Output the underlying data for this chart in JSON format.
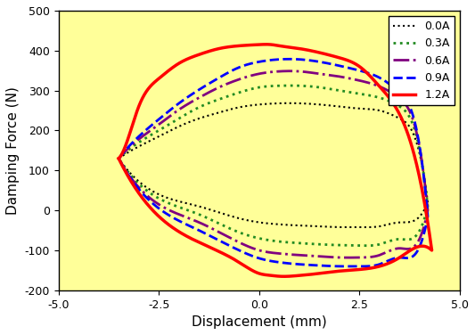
{
  "title": "",
  "xlabel": "Displacement (mm)",
  "ylabel": "Damping Force (N)",
  "xlim": [
    -5.0,
    5.0
  ],
  "ylim": [
    -200,
    500
  ],
  "xticks": [
    -5.0,
    -2.5,
    0.0,
    2.5,
    5.0
  ],
  "yticks": [
    -200,
    -100,
    0,
    100,
    200,
    300,
    400,
    500
  ],
  "background_color": "#ffff99",
  "legend_labels": [
    "0.0A",
    "0.3A",
    "0.6A",
    "0.9A",
    "1.2A"
  ],
  "legend_colors": [
    "black",
    "#228B22",
    "purple",
    "blue",
    "red"
  ],
  "legend_styles": [
    "dotted",
    "dotted",
    "dashdot",
    "dashed",
    "solid"
  ],
  "legend_widths": [
    1.5,
    2.0,
    2.0,
    2.0,
    2.5
  ],
  "curves": [
    {
      "label": "0.0A",
      "upper_x": [
        -3.5,
        -3.0,
        -2.5,
        -2.0,
        -1.5,
        -1.0,
        -0.5,
        0.0,
        0.5,
        1.0,
        1.5,
        2.0,
        2.5,
        3.0,
        3.5,
        4.0,
        4.2
      ],
      "upper_y": [
        130,
        160,
        185,
        210,
        230,
        245,
        258,
        265,
        268,
        268,
        265,
        260,
        255,
        250,
        230,
        140,
        20
      ],
      "lower_x": [
        -3.5,
        -2.5,
        -1.5,
        -0.5,
        0.0,
        0.5,
        1.0,
        1.5,
        2.0,
        2.5,
        3.0,
        3.5,
        4.0,
        4.2
      ],
      "lower_y": [
        130,
        40,
        10,
        -20,
        -30,
        -35,
        -38,
        -40,
        -42,
        -42,
        -40,
        -30,
        -15,
        20
      ]
    },
    {
      "label": "0.3A",
      "upper_x": [
        -3.5,
        -3.0,
        -2.5,
        -2.0,
        -1.5,
        -1.0,
        -0.5,
        0.0,
        0.5,
        1.0,
        1.5,
        2.0,
        2.5,
        3.0,
        3.5,
        4.0,
        4.2
      ],
      "upper_y": [
        130,
        170,
        200,
        230,
        258,
        278,
        295,
        308,
        312,
        312,
        308,
        300,
        292,
        282,
        260,
        150,
        10
      ],
      "lower_x": [
        -3.5,
        -2.5,
        -1.5,
        -0.5,
        0.0,
        0.5,
        1.0,
        1.5,
        2.0,
        2.5,
        3.0,
        3.5,
        4.0,
        4.2
      ],
      "lower_y": [
        130,
        30,
        -10,
        -55,
        -70,
        -78,
        -82,
        -85,
        -87,
        -88,
        -85,
        -72,
        -50,
        10
      ]
    },
    {
      "label": "0.6A",
      "upper_x": [
        -3.5,
        -3.0,
        -2.5,
        -2.0,
        -1.5,
        -1.0,
        -0.5,
        0.0,
        0.5,
        1.0,
        1.5,
        2.0,
        2.5,
        3.0,
        3.5,
        4.0,
        4.2
      ],
      "upper_y": [
        130,
        178,
        215,
        252,
        282,
        308,
        328,
        342,
        348,
        348,
        342,
        335,
        325,
        310,
        280,
        155,
        0
      ],
      "lower_x": [
        -3.5,
        -2.5,
        -1.5,
        -0.5,
        0.0,
        0.5,
        1.0,
        1.5,
        2.0,
        2.5,
        3.0,
        3.5,
        4.0,
        4.2
      ],
      "lower_y": [
        130,
        15,
        -30,
        -80,
        -100,
        -108,
        -112,
        -115,
        -118,
        -118,
        -112,
        -95,
        -70,
        0
      ]
    },
    {
      "label": "0.9A",
      "upper_x": [
        -3.5,
        -3.0,
        -2.5,
        -2.0,
        -1.5,
        -1.0,
        -0.5,
        0.0,
        0.5,
        1.0,
        1.5,
        2.0,
        2.5,
        3.0,
        3.5,
        4.0,
        4.2
      ],
      "upper_y": [
        130,
        185,
        228,
        268,
        302,
        332,
        358,
        372,
        378,
        378,
        372,
        362,
        350,
        332,
        295,
        158,
        -15
      ],
      "lower_x": [
        -3.5,
        -2.5,
        -1.5,
        -0.5,
        0.0,
        0.5,
        1.0,
        1.5,
        2.0,
        2.5,
        3.0,
        3.5,
        4.0,
        4.2
      ],
      "lower_y": [
        130,
        5,
        -50,
        -100,
        -120,
        -130,
        -135,
        -138,
        -140,
        -140,
        -135,
        -118,
        -90,
        -15
      ]
    },
    {
      "label": "1.2A",
      "upper_x": [
        -3.5,
        -3.2,
        -3.0,
        -2.5,
        -2.0,
        -1.5,
        -1.0,
        -0.5,
        0.0,
        0.3,
        0.5,
        1.0,
        1.5,
        2.0,
        2.5,
        3.0,
        3.5,
        4.0,
        4.3
      ],
      "upper_y": [
        130,
        200,
        260,
        330,
        368,
        390,
        405,
        412,
        415,
        415,
        412,
        405,
        395,
        382,
        360,
        310,
        240,
        80,
        -100
      ],
      "lower_x": [
        -3.5,
        -2.5,
        -1.5,
        -0.5,
        0.0,
        0.3,
        0.5,
        1.0,
        1.5,
        2.0,
        2.5,
        3.0,
        3.5,
        4.0,
        4.3
      ],
      "lower_y": [
        130,
        -15,
        -80,
        -130,
        -158,
        -163,
        -165,
        -163,
        -158,
        -152,
        -148,
        -140,
        -118,
        -90,
        -100
      ]
    }
  ]
}
